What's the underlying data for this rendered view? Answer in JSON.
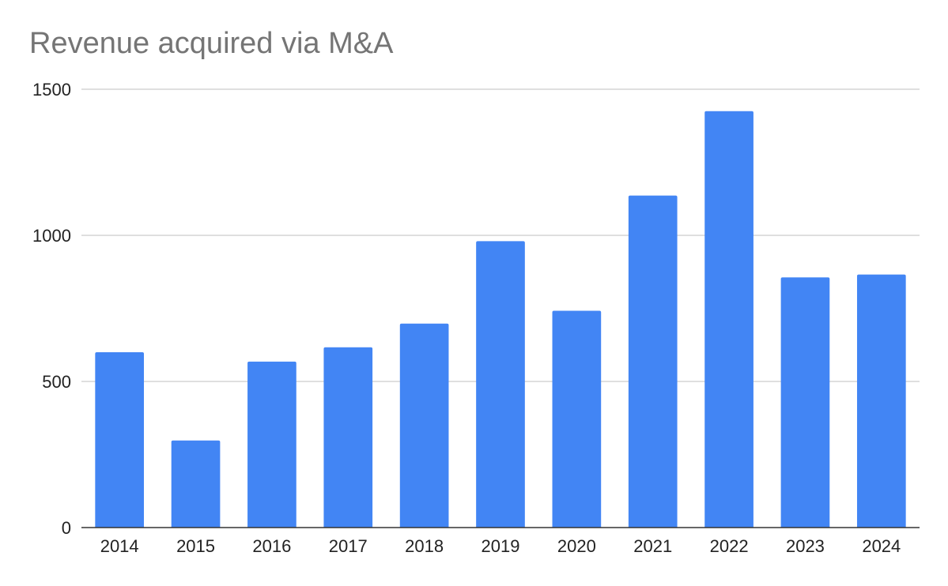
{
  "chart_data": {
    "type": "bar",
    "title": "Revenue acquired via M&A",
    "xlabel": "",
    "ylabel": "",
    "categories": [
      "2014",
      "2015",
      "2016",
      "2017",
      "2018",
      "2019",
      "2020",
      "2021",
      "2022",
      "2023",
      "2024"
    ],
    "series": [
      {
        "values": [
          600,
          298,
          568,
          617,
          698,
          980,
          742,
          1136,
          1425,
          856,
          866
        ]
      }
    ],
    "ylim": [
      0,
      1500
    ],
    "yticks": [
      "0",
      "500",
      "1000",
      "1500"
    ],
    "grid": true,
    "legend": "none",
    "colors": {
      "bar": "#4285F4",
      "grid": "#cccccc",
      "axis": "#333333",
      "title": "#757575"
    }
  }
}
